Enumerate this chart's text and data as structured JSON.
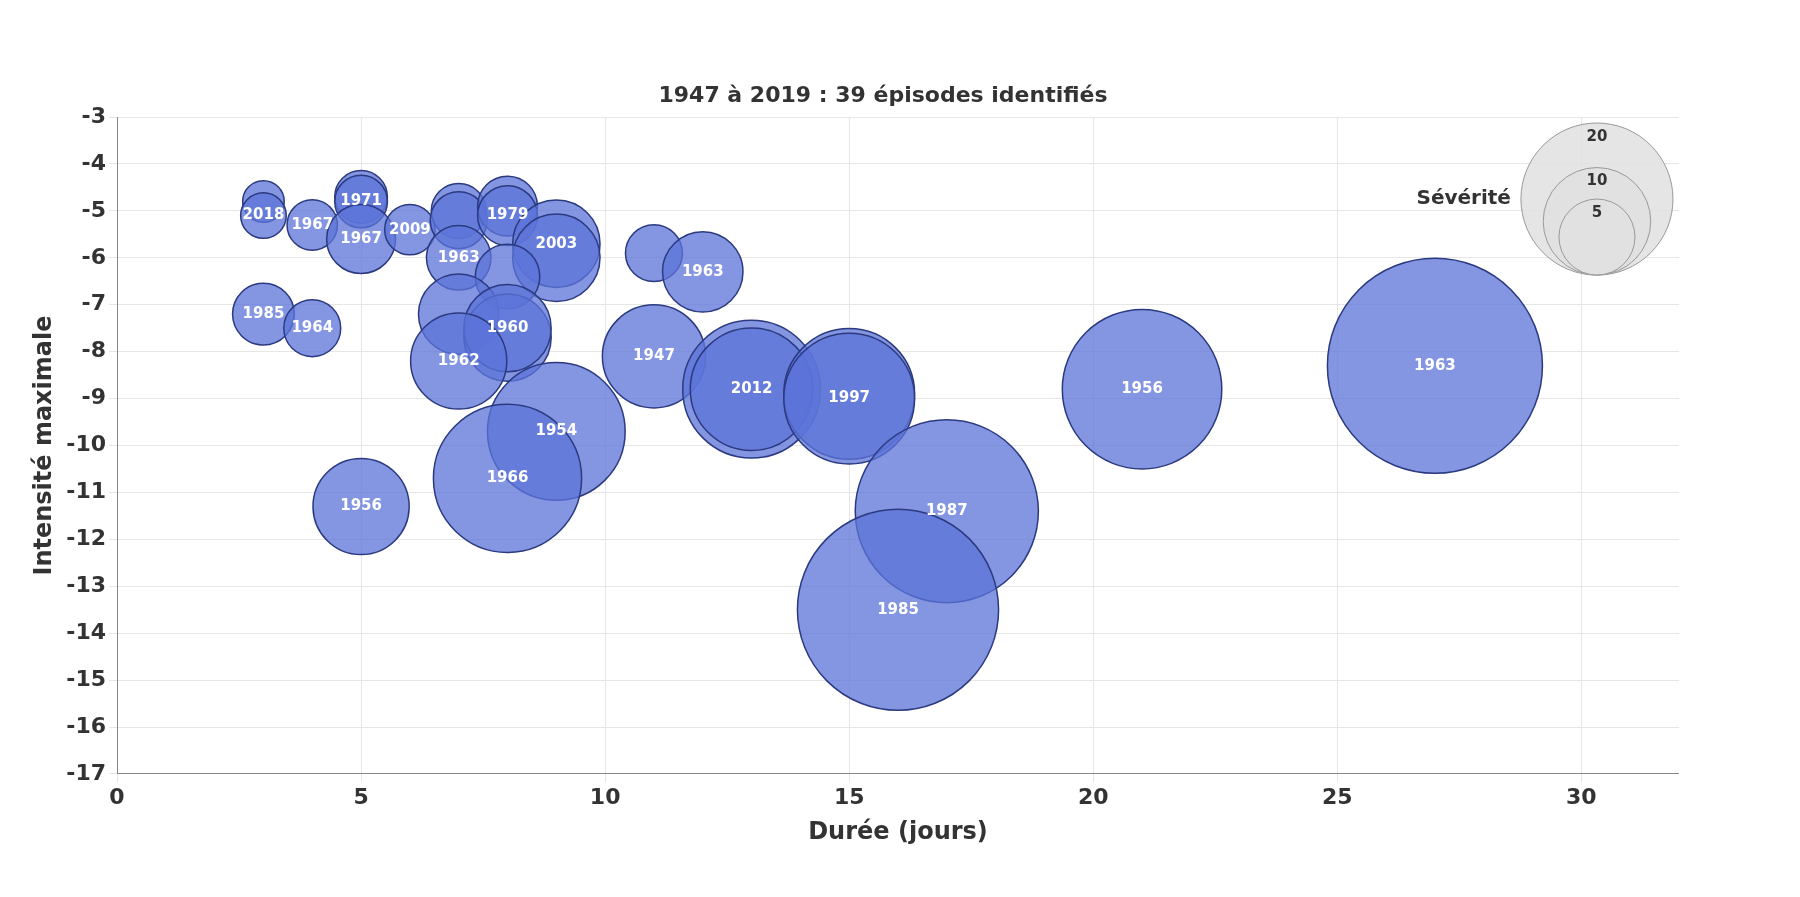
{
  "chart_data": {
    "type": "bubble",
    "title": "1947 à 2019 : 39 épisodes identifiés",
    "xlabel": "Durée (jours)",
    "ylabel": "Intensité maximale",
    "legend_title": "Sévérité",
    "grid": true,
    "xlim": [
      0,
      32
    ],
    "xticks": [
      0,
      5,
      10,
      15,
      20,
      25,
      30
    ],
    "ylim": [
      -17,
      -3
    ],
    "yticks": [
      -3,
      -4,
      -5,
      -6,
      -7,
      -8,
      -9,
      -10,
      -11,
      -12,
      -13,
      -14,
      -15,
      -16,
      -17
    ],
    "size_legend": [
      20,
      10,
      5
    ],
    "series": [
      {
        "color": "#5b74d8",
        "x": [
          3,
          3,
          4,
          5,
          5,
          5,
          6,
          7,
          7,
          7,
          8,
          8,
          9,
          9,
          8,
          11,
          12,
          3,
          4,
          7,
          8,
          8,
          7,
          11,
          13,
          13,
          15,
          15,
          21,
          27,
          17,
          16,
          9,
          8,
          5
        ],
        "values": [
          -4.8,
          -5.1,
          -5.3,
          -4.7,
          -4.8,
          -5.6,
          -5.4,
          -5.0,
          -5.2,
          -6.0,
          -4.9,
          -5.1,
          -5.7,
          -6.0,
          -6.4,
          -5.9,
          -6.3,
          -7.2,
          -7.5,
          -7.2,
          -7.7,
          -7.5,
          -8.2,
          -8.1,
          -8.8,
          -8.8,
          -8.9,
          -9.0,
          -8.8,
          -8.3,
          -11.4,
          -13.5,
          -9.7,
          -10.7,
          -11.3
        ],
        "sizes": [
          1.5,
          1.8,
          2.2,
          2.4,
          2.4,
          4.1,
          2.2,
          2.6,
          2.8,
          3.6,
          3.1,
          3.1,
          6.6,
          6.6,
          3.6,
          2.8,
          5.6,
          3.3,
          2.8,
          5.6,
          6.6,
          6.6,
          8,
          9.2,
          16.4,
          13,
          14.8,
          14.8,
          22,
          40,
          29,
          35,
          16.4,
          19,
          8
        ]
      }
    ],
    "annotations": [
      {
        "text": "2018",
        "x": 3,
        "y": -5.1
      },
      {
        "text": "1967",
        "x": 4,
        "y": -5.3
      },
      {
        "text": "1971",
        "x": 5,
        "y": -4.8
      },
      {
        "text": "1967",
        "x": 5,
        "y": -5.6
      },
      {
        "text": "2009",
        "x": 6,
        "y": -5.4
      },
      {
        "text": "1963",
        "x": 7,
        "y": -6.0
      },
      {
        "text": "1979",
        "x": 8,
        "y": -5.1
      },
      {
        "text": "2003",
        "x": 9,
        "y": -5.7
      },
      {
        "text": "1963",
        "x": 12,
        "y": -6.3
      },
      {
        "text": "1985",
        "x": 3,
        "y": -7.2
      },
      {
        "text": "1964",
        "x": 4,
        "y": -7.5
      },
      {
        "text": "1960",
        "x": 8,
        "y": -7.5
      },
      {
        "text": "1962",
        "x": 7,
        "y": -8.2
      },
      {
        "text": "1947",
        "x": 11,
        "y": -8.1
      },
      {
        "text": "2012",
        "x": 13,
        "y": -8.8
      },
      {
        "text": "1997",
        "x": 15,
        "y": -9.0
      },
      {
        "text": "1956",
        "x": 21,
        "y": -8.8
      },
      {
        "text": "1963",
        "x": 27,
        "y": -8.3
      },
      {
        "text": "1987",
        "x": 17,
        "y": -11.4
      },
      {
        "text": "1985",
        "x": 16,
        "y": -13.5
      },
      {
        "text": "1954",
        "x": 9,
        "y": -9.7
      },
      {
        "text": "1966",
        "x": 8,
        "y": -10.7
      },
      {
        "text": "1956",
        "x": 5,
        "y": -11.3
      }
    ]
  }
}
